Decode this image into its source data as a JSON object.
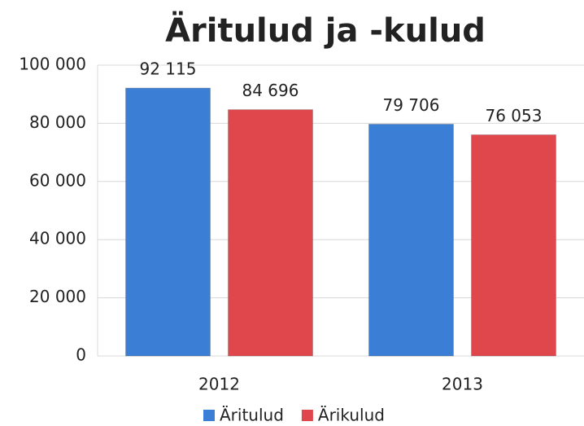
{
  "chart_data": {
    "type": "bar",
    "title": "Äritulud ja -kulud",
    "categories": [
      "2012",
      "2013"
    ],
    "series": [
      {
        "name": "Äritulud",
        "color": "#3a7fd5",
        "values": [
          92115,
          79706
        ],
        "value_labels": [
          "92 115",
          "79 706"
        ]
      },
      {
        "name": "Ärikulud",
        "color": "#e0474c",
        "values": [
          84696,
          76053
        ],
        "value_labels": [
          "84 696",
          "76 053"
        ]
      }
    ],
    "ylim": [
      0,
      100000
    ],
    "yticks": [
      {
        "value": 0,
        "label": "0"
      },
      {
        "value": 20000,
        "label": "20 000"
      },
      {
        "value": 40000,
        "label": "40 000"
      },
      {
        "value": 60000,
        "label": "60 000"
      },
      {
        "value": 80000,
        "label": "80 000"
      },
      {
        "value": 100000,
        "label": "100 000"
      }
    ],
    "grid": true,
    "legend": "bottom"
  }
}
